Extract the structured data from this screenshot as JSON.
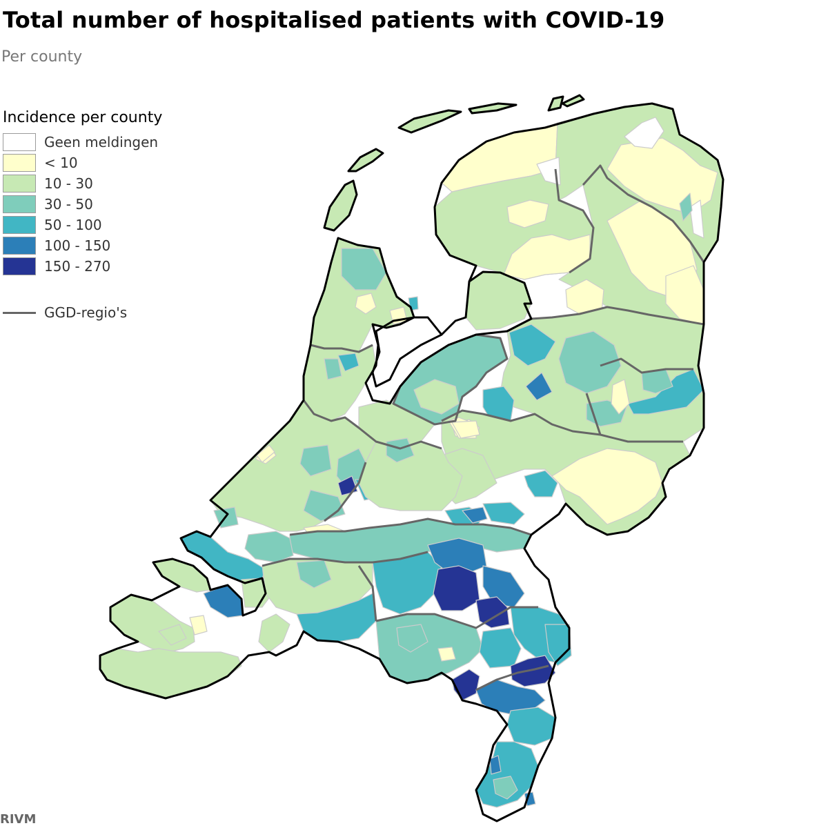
{
  "title": "Total number of hospitalised patients with COVID-19",
  "subtitle": "Per county",
  "legend": {
    "title": "Incidence per county",
    "items": [
      {
        "label": "Geen meldingen",
        "color": "#ffffff"
      },
      {
        "label": "< 10",
        "color": "#ffffcc"
      },
      {
        "label": "10 - 30",
        "color": "#c7e9b4"
      },
      {
        "label": "30 - 50",
        "color": "#7fcdbb"
      },
      {
        "label": "50 - 100",
        "color": "#41b6c4"
      },
      {
        "label": "100 - 150",
        "color": "#2c7fb8"
      },
      {
        "label": "150 - 270",
        "color": "#253494"
      }
    ],
    "boundary_label": "GGD-regio's",
    "boundary_color": "#666666"
  },
  "source": "RIVM"
}
